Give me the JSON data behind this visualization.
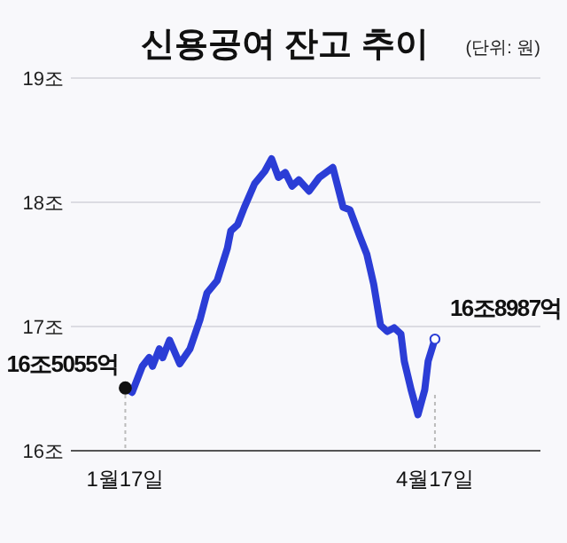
{
  "chart_data": {
    "type": "line",
    "title": "신용공여 잔고 추이",
    "subtitle": "(단위: 원)",
    "series": [
      {
        "color": "#2b3dd6",
        "x": [
          "--01-17",
          "--01-19",
          "--01-22",
          "--01-24",
          "--01-25",
          "--01-27",
          "--01-28",
          "--01-30",
          "--02-02",
          "--02-05",
          "--02-08",
          "--02-10",
          "--02-13",
          "--02-16",
          "--02-17",
          "--02-19",
          "--02-21",
          "--02-24",
          "--02-27",
          "--02-29",
          "--03-02",
          "--03-04",
          "--03-06",
          "--03-08",
          "--03-11",
          "--03-14",
          "--03-18",
          "--03-21",
          "--03-23",
          "--03-26",
          "--03-28",
          "--03-30",
          "--04-01",
          "--04-03",
          "--04-05",
          "--04-07",
          "--04-08",
          "--04-10",
          "--04-12",
          "--04-14",
          "--04-15",
          "--04-17"
        ],
        "values": [
          16.5055,
          16.47,
          16.68,
          16.75,
          16.68,
          16.82,
          16.75,
          16.89,
          16.7,
          16.82,
          17.06,
          17.27,
          17.37,
          17.63,
          17.77,
          17.82,
          17.96,
          18.15,
          18.25,
          18.35,
          18.2,
          18.24,
          18.13,
          18.18,
          18.09,
          18.2,
          18.28,
          17.96,
          17.94,
          17.72,
          17.58,
          17.34,
          17.01,
          16.96,
          16.99,
          16.94,
          16.72,
          16.49,
          16.29,
          16.49,
          16.72,
          16.8987
        ]
      }
    ],
    "xlim": [
      "--01-01",
      "--05-18"
    ],
    "xticks": [
      {
        "value": "--01-17",
        "label": "1월17일"
      },
      {
        "value": "--04-17",
        "label": "4월17일"
      }
    ],
    "ylim": [
      16,
      19
    ],
    "yticks": [
      {
        "value": 16,
        "label": "16조"
      },
      {
        "value": 17,
        "label": "17조"
      },
      {
        "value": 18,
        "label": "18조"
      },
      {
        "value": 19,
        "label": "19조"
      }
    ],
    "grid": "y",
    "marker": "none",
    "line_style": "solid",
    "annotations": [
      {
        "text": "16조5055억",
        "x": "--01-17",
        "y": 16.5055
      },
      {
        "text": "16조8987억",
        "x": "--04-17",
        "y": 16.8987
      }
    ]
  }
}
